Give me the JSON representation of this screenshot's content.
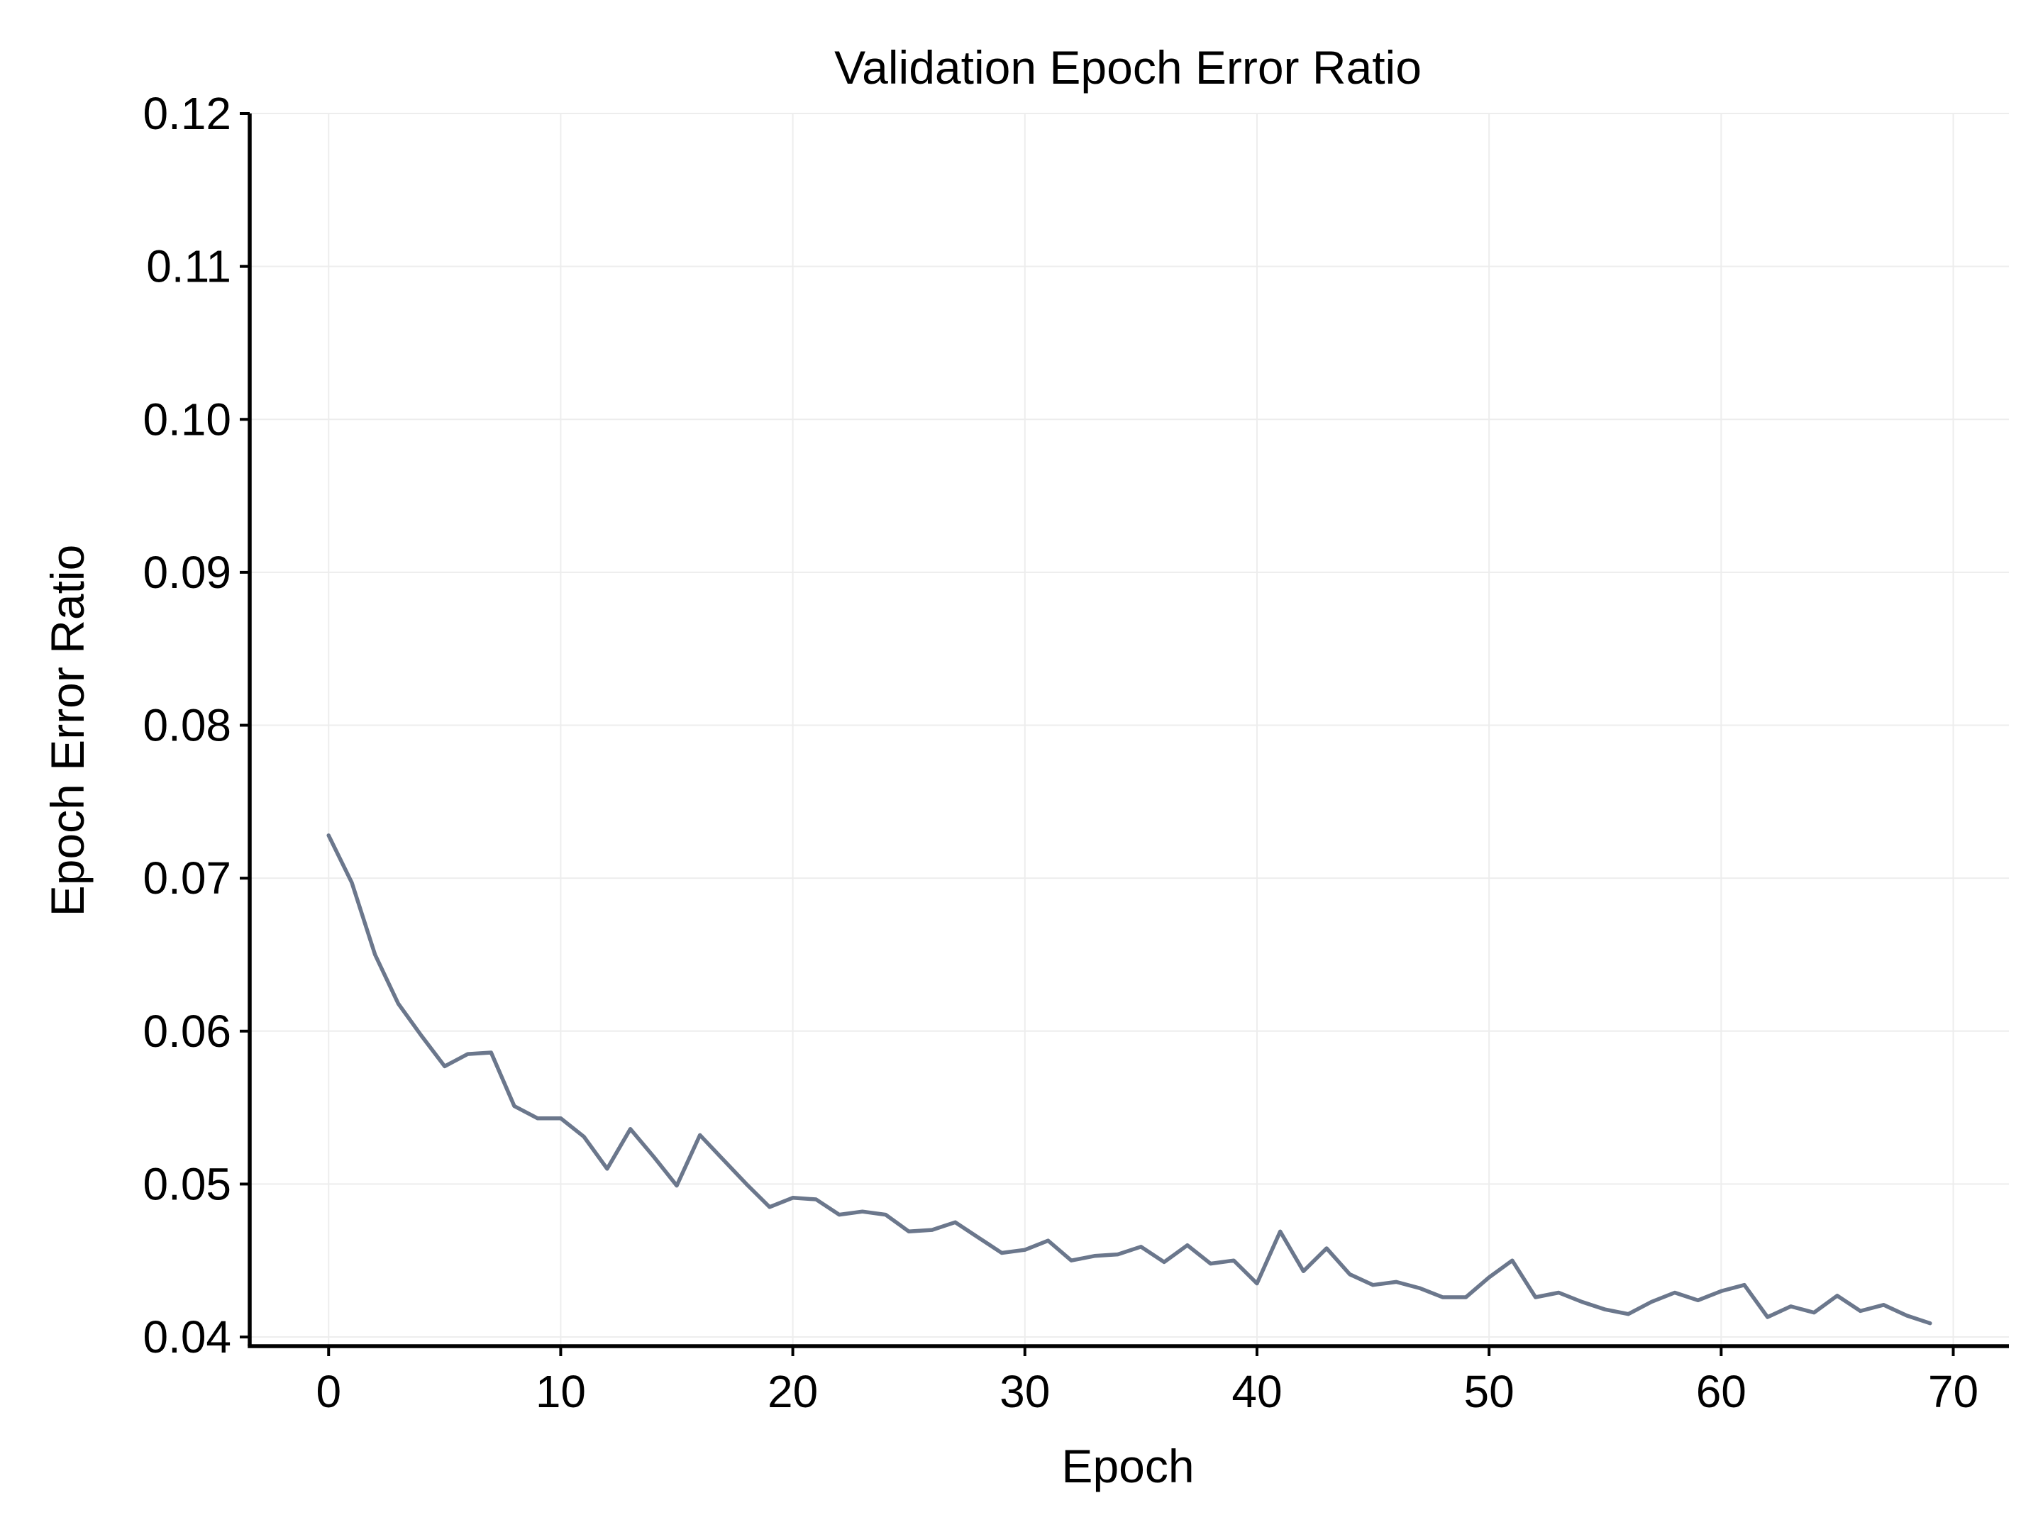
{
  "chart_data": {
    "type": "line",
    "title": "Validation Epoch Error Ratio",
    "xlabel": "Epoch",
    "ylabel": "Epoch Error Ratio",
    "xlim": [
      -3.4,
      72.4
    ],
    "ylim": [
      0.0394,
      0.12
    ],
    "xticks": [
      0,
      10,
      20,
      30,
      40,
      50,
      60,
      70
    ],
    "xtick_labels": [
      "0",
      "10",
      "20",
      "30",
      "40",
      "50",
      "60",
      "70"
    ],
    "yticks": [
      0.04,
      0.05,
      0.06,
      0.07,
      0.08,
      0.09,
      0.1,
      0.11,
      0.12
    ],
    "ytick_labels": [
      "0.04",
      "0.05",
      "0.06",
      "0.07",
      "0.08",
      "0.09",
      "0.10",
      "0.11",
      "0.12"
    ],
    "grid": true,
    "legend": "none",
    "colors": {
      "line": "#6b778c",
      "grid": "#ededed",
      "axis": "#000000"
    },
    "series": [
      {
        "x": [
          0,
          1,
          2,
          3,
          4,
          5,
          6,
          7,
          8,
          9,
          10,
          11,
          12,
          13,
          14,
          15,
          16,
          17,
          18,
          19,
          20,
          21,
          22,
          23,
          24,
          25,
          26,
          27,
          28,
          29,
          30,
          31,
          32,
          33,
          34,
          35,
          36,
          37,
          38,
          39,
          40,
          41,
          42,
          43,
          44,
          45,
          46,
          47,
          48,
          49,
          50,
          51,
          52,
          53,
          54,
          55,
          56,
          57,
          58,
          59,
          60,
          61,
          62,
          63,
          64,
          65,
          66,
          67,
          68,
          69
        ],
        "values": [
          0.0728,
          0.0697,
          0.065,
          0.0618,
          0.0597,
          0.0577,
          0.0585,
          0.0586,
          0.0551,
          0.0543,
          0.0543,
          0.0531,
          0.051,
          0.0536,
          0.0518,
          0.0499,
          0.0532,
          0.0516,
          0.05,
          0.0485,
          0.0491,
          0.049,
          0.048,
          0.0482,
          0.048,
          0.0469,
          0.047,
          0.0475,
          0.0465,
          0.0455,
          0.0457,
          0.0463,
          0.045,
          0.0453,
          0.0454,
          0.0459,
          0.0449,
          0.046,
          0.0448,
          0.045,
          0.0435,
          0.0469,
          0.0443,
          0.0458,
          0.0441,
          0.0434,
          0.0436,
          0.0432,
          0.0426,
          0.0426,
          0.0439,
          0.045,
          0.0426,
          0.0429,
          0.0423,
          0.0418,
          0.0415,
          0.0423,
          0.0429,
          0.0424,
          0.043,
          0.0434,
          0.0413,
          0.042,
          0.0416,
          0.0427,
          0.0417,
          0.0421,
          0.0414,
          0.0409
        ]
      }
    ]
  }
}
